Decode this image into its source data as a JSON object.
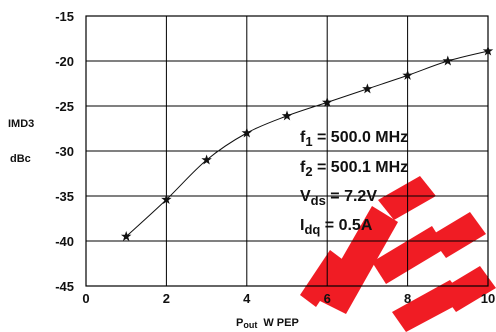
{
  "chart_data": {
    "type": "line",
    "title": "",
    "xlabel_main": "P",
    "xlabel_sub": "out",
    "xlabel_unit": "W PEP",
    "ylabel_line1": "IMD3",
    "ylabel_line2": "dBc",
    "xlim": [
      0,
      10
    ],
    "ylim": [
      -45,
      -15
    ],
    "x_ticks": [
      0,
      2,
      4,
      6,
      8,
      10
    ],
    "y_ticks": [
      -15,
      -20,
      -25,
      -30,
      -35,
      -40,
      -45
    ],
    "grid": true,
    "marker": "star",
    "series": [
      {
        "x": [
          1,
          2,
          3,
          4,
          5,
          6,
          7,
          8,
          9,
          10
        ],
        "values": [
          -39.5,
          -35.4,
          -31.0,
          -28.0,
          -26.1,
          -24.6,
          -23.1,
          -21.6,
          -20.0,
          -18.9
        ]
      }
    ],
    "annotations": [
      {
        "main": "f",
        "sub": "1",
        "rest": " = 500.0 MHz"
      },
      {
        "main": "f",
        "sub": "2",
        "rest": " = 500.1 MHz"
      },
      {
        "main": "V",
        "sub": "ds",
        "rest": " = 7.2V"
      },
      {
        "main": "I",
        "sub": "dq",
        "rest": " = 0.5A"
      }
    ],
    "colors": {
      "line": "#111111",
      "grid": "#000000",
      "watermark": "#f01c24"
    }
  }
}
